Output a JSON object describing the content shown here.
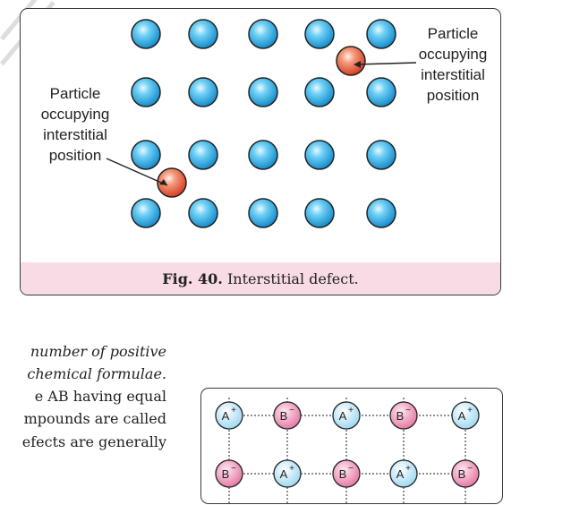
{
  "figure_interstitial": {
    "label_left": [
      "Particle",
      "occupying",
      "interstitial",
      "position"
    ],
    "label_right": [
      "Particle",
      "occupying",
      "interstitial",
      "position"
    ],
    "caption_number": "Fig. 40.",
    "caption_text": "Interstitial defect.",
    "colors": {
      "lattice_particle": "#2fa8e0",
      "interstitial_particle": "#e8553c",
      "caption_band": "#f9dbe6"
    }
  },
  "paragraph": {
    "lines": [
      "number of positive",
      "chemical formulae.",
      "e AB having equal",
      "mpounds are called",
      "efects are generally"
    ]
  },
  "figure_ionic": {
    "row1": [
      "A+",
      "B−",
      "A+",
      "B−",
      "A+"
    ],
    "row2": [
      "B−",
      "A+",
      "B−",
      "A+",
      "B−"
    ],
    "colors": {
      "cation": "#bfe6f7",
      "anion": "#f0a7c5"
    }
  }
}
